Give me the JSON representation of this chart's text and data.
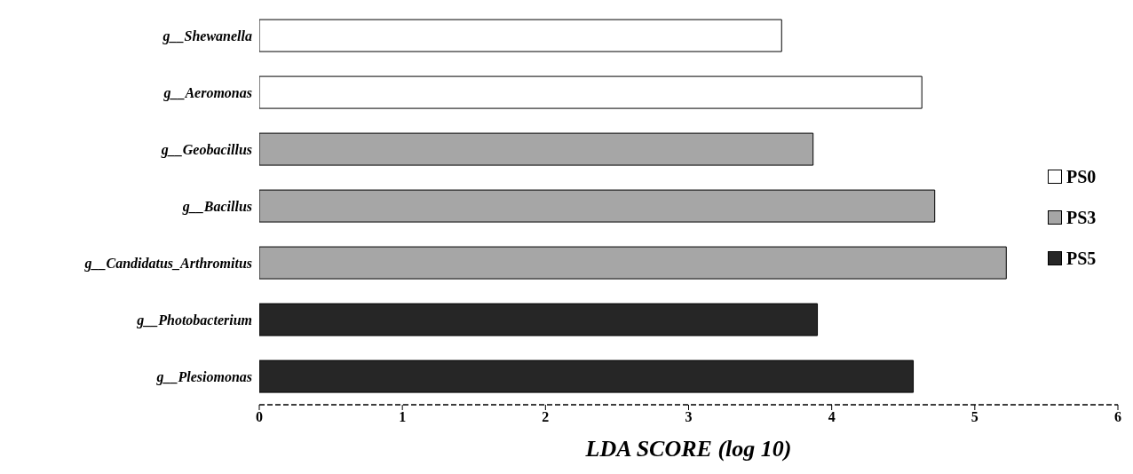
{
  "chart_data": {
    "type": "bar",
    "orientation": "horizontal",
    "xlabel": "LDA SCORE (log 10)",
    "categories": [
      "g__Shewanella",
      "g__Aeromonas",
      "g__Geobacillus",
      "g__Bacillus",
      "g__Candidatus_Arthromitus",
      "g__Photobacterium",
      "g__Plesiomonas"
    ],
    "series": [
      {
        "name": "PS0",
        "color": "#ffffff",
        "values": [
          3.65,
          4.63,
          null,
          null,
          null,
          null,
          null
        ]
      },
      {
        "name": "PS3",
        "color": "#a6a6a6",
        "values": [
          null,
          null,
          3.87,
          4.72,
          5.22,
          null,
          null
        ]
      },
      {
        "name": "PS5",
        "color": "#262626",
        "values": [
          null,
          null,
          null,
          null,
          null,
          3.9,
          4.57
        ]
      }
    ],
    "xlim": [
      0,
      6
    ],
    "xticks": [
      0,
      1,
      2,
      3,
      4,
      5,
      6
    ],
    "legend": "right"
  }
}
